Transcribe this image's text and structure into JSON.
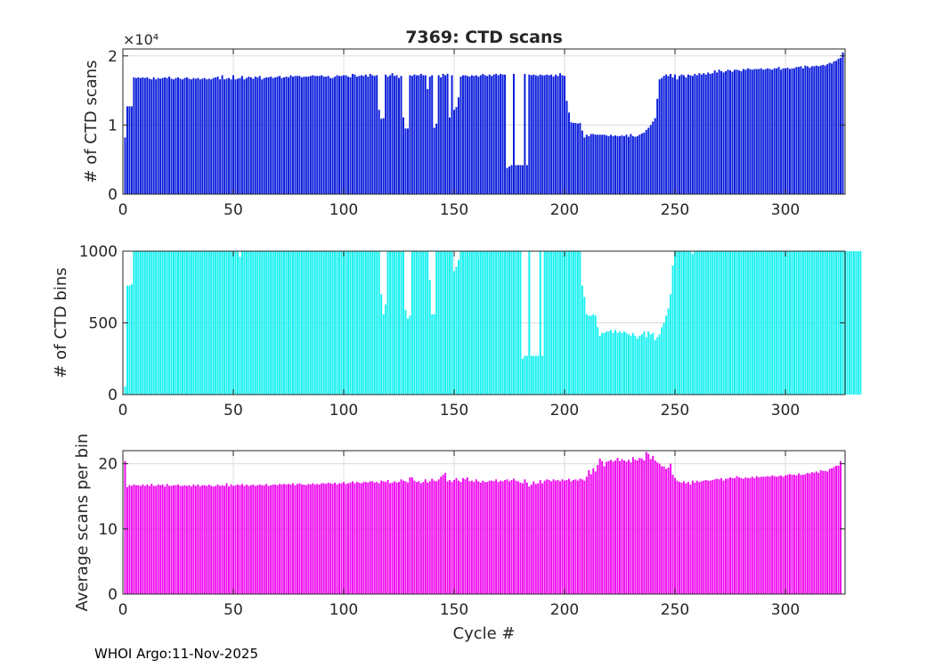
{
  "footer": "WHOI Argo:11-Nov-2025",
  "colors": {
    "panel1": "#0b1ddb",
    "panel2": "#19f0f0",
    "panel3": "#ee0eee"
  },
  "chart_data": [
    {
      "type": "bar",
      "title": "7369: CTD scans",
      "xlabel": "",
      "ylabel": "# of CTD scans",
      "exponent_label": "×10⁴",
      "xlim": [
        0,
        327
      ],
      "ylim": [
        0,
        2.1
      ],
      "xticks": [
        0,
        50,
        100,
        150,
        200,
        250,
        300
      ],
      "yticks": [
        0,
        1,
        2
      ],
      "grid": true,
      "color": "#0b1ddb",
      "x_start": 1,
      "values": [
        0.82,
        1.27,
        1.27,
        1.27,
        1.69,
        1.68,
        1.69,
        1.68,
        1.69,
        1.68,
        1.69,
        1.67,
        1.66,
        1.69,
        1.66,
        1.68,
        1.67,
        1.68,
        1.69,
        1.68,
        1.7,
        1.67,
        1.66,
        1.68,
        1.69,
        1.67,
        1.66,
        1.68,
        1.69,
        1.67,
        1.66,
        1.68,
        1.67,
        1.68,
        1.66,
        1.67,
        1.68,
        1.66,
        1.67,
        1.66,
        1.68,
        1.69,
        1.7,
        1.66,
        1.72,
        1.66,
        1.67,
        1.68,
        1.66,
        1.72,
        1.66,
        1.67,
        1.68,
        1.71,
        1.66,
        1.68,
        1.7,
        1.69,
        1.67,
        1.7,
        1.69,
        1.71,
        1.66,
        1.68,
        1.69,
        1.69,
        1.7,
        1.68,
        1.69,
        1.7,
        1.71,
        1.68,
        1.69,
        1.7,
        1.69,
        1.72,
        1.7,
        1.71,
        1.71,
        1.71,
        1.69,
        1.7,
        1.7,
        1.7,
        1.71,
        1.72,
        1.71,
        1.71,
        1.71,
        1.72,
        1.7,
        1.7,
        1.71,
        1.68,
        1.68,
        1.7,
        1.72,
        1.71,
        1.71,
        1.72,
        1.72,
        1.7,
        1.69,
        1.74,
        1.73,
        1.7,
        1.71,
        1.72,
        1.71,
        1.73,
        1.7,
        1.74,
        1.72,
        1.71,
        1.72,
        1.22,
        1.09,
        1.1,
        1.73,
        1.7,
        1.72,
        1.75,
        1.71,
        1.72,
        1.68,
        1.71,
        1.11,
        0.95,
        0.95,
        1.72,
        1.71,
        1.73,
        1.72,
        1.72,
        1.74,
        1.72,
        1.72,
        1.52,
        1.7,
        1.72,
        0.96,
        1.02,
        1.72,
        1.69,
        1.74,
        1.72,
        1.74,
        1.11,
        1.72,
        1.22,
        1.26,
        1.4,
        1.7,
        1.72,
        1.72,
        1.71,
        1.7,
        1.72,
        1.71,
        1.72,
        1.7,
        1.72,
        1.74,
        1.72,
        1.71,
        1.73,
        1.71,
        1.73,
        1.74,
        1.72,
        1.74,
        1.73,
        1.73,
        0.38,
        0.4,
        0.42,
        1.74,
        0.42,
        0.42,
        0.42,
        0.42,
        1.74,
        0.42,
        1.73,
        1.72,
        1.73,
        1.72,
        1.71,
        1.73,
        1.72,
        1.72,
        1.73,
        1.72,
        1.73,
        1.7,
        1.73,
        1.71,
        1.75,
        1.72,
        1.71,
        1.35,
        1.18,
        1.04,
        1.03,
        1.03,
        1.02,
        1.03,
        0.92,
        0.82,
        0.86,
        0.84,
        0.87,
        0.87,
        0.86,
        0.86,
        0.86,
        0.86,
        0.86,
        0.85,
        0.84,
        0.86,
        0.84,
        0.85,
        0.84,
        0.84,
        0.85,
        0.84,
        0.86,
        0.83,
        0.87,
        0.84,
        0.83,
        0.84,
        0.86,
        0.88,
        0.89,
        0.93,
        0.96,
        1.0,
        1.05,
        1.1,
        1.38,
        1.66,
        1.68,
        1.71,
        1.73,
        1.71,
        1.74,
        1.69,
        1.73,
        1.66,
        1.71,
        1.73,
        1.72,
        1.69,
        1.73,
        1.72,
        1.71,
        1.74,
        1.72,
        1.75,
        1.73,
        1.75,
        1.73,
        1.76,
        1.74,
        1.75,
        1.79,
        1.76,
        1.8,
        1.78,
        1.76,
        1.78,
        1.8,
        1.79,
        1.77,
        1.8,
        1.8,
        1.79,
        1.78,
        1.81,
        1.8,
        1.82,
        1.81,
        1.8,
        1.81,
        1.81,
        1.81,
        1.82,
        1.8,
        1.81,
        1.82,
        1.81,
        1.8,
        1.82,
        1.82,
        1.84,
        1.8,
        1.82,
        1.82,
        1.83,
        1.81,
        1.82,
        1.82,
        1.84,
        1.84,
        1.85,
        1.82,
        1.86,
        1.85,
        1.83,
        1.85,
        1.85,
        1.86,
        1.85,
        1.86,
        1.87,
        1.86,
        1.88,
        1.9,
        1.89,
        1.92,
        1.93,
        1.96,
        1.97,
        2.05
      ]
    },
    {
      "type": "bar",
      "title": "",
      "xlabel": "",
      "ylabel": "# of CTD bins",
      "xlim": [
        0,
        327
      ],
      "ylim": [
        0,
        1000
      ],
      "xticks": [
        0,
        50,
        100,
        150,
        200,
        250,
        300
      ],
      "yticks": [
        0,
        500,
        1000
      ],
      "grid": true,
      "color": "#19f0f0",
      "x_start": 1,
      "values": [
        55,
        760,
        760,
        770,
        1000,
        1000,
        1000,
        1000,
        1000,
        1000,
        1000,
        1000,
        1000,
        1000,
        1000,
        1000,
        1000,
        1000,
        1000,
        1000,
        1000,
        1000,
        1000,
        1000,
        1000,
        1000,
        1000,
        1000,
        1000,
        1000,
        1000,
        1000,
        1000,
        1000,
        1000,
        1000,
        1000,
        1000,
        1000,
        1000,
        1000,
        1000,
        1000,
        1000,
        1000,
        1000,
        1000,
        1000,
        1000,
        1000,
        1000,
        1000,
        960,
        1000,
        1000,
        1000,
        1000,
        1000,
        1000,
        1000,
        1000,
        1000,
        1000,
        1000,
        1000,
        1000,
        1000,
        1000,
        1000,
        1000,
        1000,
        1000,
        1000,
        1000,
        1000,
        1000,
        1000,
        1000,
        1000,
        1000,
        1000,
        1000,
        1000,
        1000,
        1000,
        1000,
        1000,
        1000,
        1000,
        1000,
        1000,
        1000,
        1000,
        1000,
        1000,
        1000,
        1000,
        1000,
        1000,
        1000,
        1000,
        1000,
        1000,
        1000,
        1000,
        1000,
        1000,
        1000,
        1000,
        1000,
        1000,
        1000,
        1000,
        1000,
        1000,
        1000,
        700,
        560,
        630,
        1000,
        1000,
        1000,
        1000,
        1000,
        1000,
        1000,
        1000,
        590,
        530,
        550,
        1000,
        1000,
        1000,
        1000,
        1000,
        1000,
        1000,
        1000,
        800,
        560,
        560,
        1000,
        1000,
        1000,
        1000,
        1000,
        1000,
        1000,
        1000,
        860,
        890,
        940,
        1000,
        1000,
        1000,
        1000,
        1000,
        1000,
        1000,
        1000,
        1000,
        1000,
        1000,
        1000,
        1000,
        1000,
        1000,
        1000,
        1000,
        1000,
        1000,
        1000,
        1000,
        1000,
        1000,
        1000,
        1000,
        1000,
        1000,
        1000,
        250,
        270,
        270,
        1000,
        270,
        270,
        270,
        270,
        1000,
        270,
        1000,
        1000,
        1000,
        1000,
        1000,
        1000,
        1000,
        1000,
        1000,
        1000,
        1000,
        1000,
        1000,
        1000,
        1000,
        1000,
        1000,
        760,
        680,
        560,
        550,
        550,
        560,
        550,
        470,
        410,
        430,
        430,
        440,
        440,
        450,
        430,
        450,
        430,
        440,
        430,
        440,
        430,
        420,
        410,
        430,
        410,
        390,
        410,
        420,
        440,
        400,
        440,
        420,
        430,
        380,
        400,
        420,
        470,
        500,
        550,
        600,
        700,
        900,
        1000,
        1000,
        1000,
        1000,
        1000,
        1000,
        1000,
        1000,
        980,
        1000,
        1000,
        1000,
        1000,
        1000,
        1000,
        1000,
        1000,
        1000,
        1000,
        1000,
        1000,
        1000,
        1000,
        1000,
        1000,
        1000,
        1000,
        1000,
        1000,
        1000,
        1000,
        1000,
        1000,
        1000,
        1000,
        1000,
        1000,
        1000,
        1000,
        1000,
        1000,
        1000,
        1000,
        1000,
        1000,
        1000,
        1000,
        1000,
        1000,
        1000,
        1000,
        1000,
        1000,
        1000,
        1000,
        1000,
        1000,
        1000,
        1000,
        1000,
        1000,
        1000,
        1000,
        1000,
        1000,
        1000,
        1000,
        1000,
        1000,
        1000,
        1000,
        1000,
        1000,
        1000,
        1000,
        1000,
        1000,
        1000,
        1000,
        1000,
        1000,
        1000,
        1000,
        1000,
        1000
      ]
    },
    {
      "type": "bar",
      "title": "",
      "xlabel": "Cycle #",
      "ylabel": "Average scans per bin",
      "xlim": [
        0,
        327
      ],
      "ylim": [
        0,
        22
      ],
      "xticks": [
        0,
        50,
        100,
        150,
        200,
        250,
        300
      ],
      "yticks": [
        0,
        10,
        20
      ],
      "grid": true,
      "color": "#ee0eee",
      "x_start": 1,
      "values": [
        20.4,
        16.4,
        16.7,
        16.6,
        16.8,
        16.7,
        16.7,
        16.6,
        16.8,
        16.6,
        16.8,
        16.6,
        16.9,
        16.6,
        16.6,
        16.8,
        16.7,
        16.8,
        16.5,
        16.9,
        16.6,
        16.6,
        16.7,
        16.7,
        16.8,
        16.6,
        16.6,
        16.7,
        16.6,
        16.7,
        16.5,
        16.8,
        16.6,
        16.8,
        16.5,
        16.7,
        16.7,
        16.6,
        16.8,
        16.6,
        16.5,
        16.6,
        16.8,
        16.6,
        16.7,
        16.6,
        17.0,
        16.5,
        16.8,
        16.6,
        16.7,
        16.8,
        16.7,
        16.9,
        16.6,
        16.8,
        16.6,
        16.7,
        16.8,
        16.6,
        16.7,
        16.8,
        16.7,
        16.7,
        16.9,
        16.6,
        16.7,
        16.8,
        16.8,
        16.7,
        16.9,
        16.8,
        16.9,
        16.8,
        16.9,
        16.8,
        17.0,
        16.7,
        16.9,
        17.0,
        16.8,
        16.8,
        16.7,
        16.9,
        16.8,
        17.0,
        16.8,
        16.9,
        16.8,
        17.0,
        17.0,
        16.9,
        17.1,
        17.0,
        16.9,
        17.1,
        16.8,
        17.0,
        17.0,
        17.2,
        16.9,
        17.0,
        17.1,
        17.3,
        17.0,
        17.2,
        17.1,
        17.0,
        17.2,
        17.2,
        17.1,
        17.3,
        17.3,
        17.1,
        17.2,
        17.0,
        17.4,
        17.3,
        17.2,
        17.5,
        17.0,
        17.1,
        17.3,
        17.1,
        17.2,
        17.6,
        17.4,
        17.3,
        17.1,
        17.9,
        17.9,
        17.4,
        17.2,
        17.3,
        17.0,
        17.2,
        17.6,
        17.1,
        17.3,
        17.7,
        17.4,
        17.3,
        17.6,
        18.0,
        18.3,
        18.6,
        17.3,
        17.5,
        17.2,
        17.5,
        17.8,
        17.4,
        17.2,
        17.8,
        17.6,
        17.9,
        17.3,
        17.4,
        17.2,
        17.6,
        17.3,
        17.1,
        17.4,
        17.2,
        17.2,
        17.4,
        17.4,
        17.3,
        17.6,
        17.2,
        17.4,
        17.3,
        17.5,
        17.6,
        17.3,
        17.5,
        17.7,
        17.4,
        17.3,
        17.1,
        17.0,
        17.6,
        17.1,
        16.5,
        16.8,
        17.3,
        16.9,
        17.0,
        17.5,
        17.0,
        17.4,
        17.6,
        17.5,
        17.3,
        17.6,
        17.4,
        17.5,
        17.3,
        17.6,
        17.4,
        17.5,
        17.7,
        17.3,
        17.5,
        17.6,
        17.4,
        17.7,
        17.6,
        17.4,
        18.0,
        19.0,
        18.4,
        19.3,
        18.8,
        19.8,
        20.8,
        20.4,
        19.6,
        20.3,
        20.4,
        20.6,
        20.3,
        20.5,
        20.9,
        20.4,
        20.7,
        20.5,
        20.3,
        20.6,
        20.2,
        21.0,
        20.6,
        20.5,
        20.9,
        20.8,
        20.5,
        21.8,
        21.5,
        20.7,
        21.2,
        20.5,
        20.2,
        20.0,
        19.6,
        19.6,
        19.2,
        19.4,
        20.0,
        18.3,
        17.8,
        17.4,
        17.2,
        17.1,
        17.3,
        17.0,
        17.2,
        16.8,
        17.4,
        17.1,
        17.4,
        17.2,
        17.3,
        17.4,
        17.5,
        17.4,
        17.4,
        17.5,
        17.6,
        17.7,
        17.6,
        17.8,
        17.4,
        17.7,
        17.7,
        17.9,
        17.8,
        17.8,
        18.1,
        17.9,
        17.8,
        17.7,
        17.9,
        17.8,
        17.8,
        18.0,
        17.8,
        18.1,
        17.9,
        18.0,
        18.0,
        18.0,
        18.1,
        18.0,
        18.2,
        18.1,
        18.0,
        18.1,
        18.2,
        18.0,
        18.2,
        18.3,
        18.4,
        18.3,
        18.3,
        18.2,
        18.5,
        18.3,
        18.3,
        18.4,
        18.6,
        18.5,
        18.7,
        18.6,
        18.8,
        18.6,
        19.0,
        18.9,
        18.9,
        18.8,
        19.2,
        19.3,
        19.5,
        19.7,
        19.7,
        20.4
      ]
    }
  ]
}
